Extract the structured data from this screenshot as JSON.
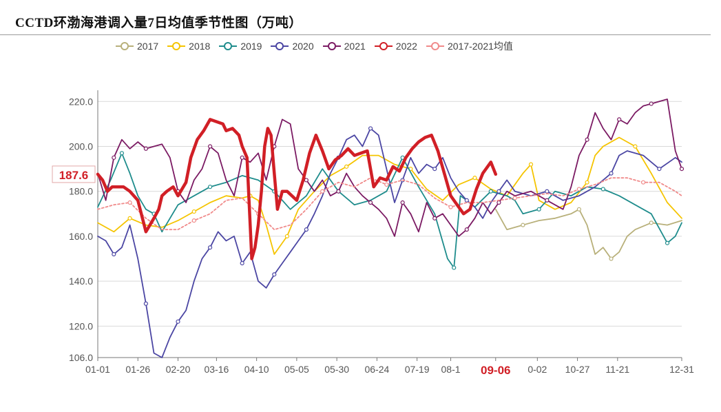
{
  "chart_data": {
    "type": "line",
    "title": "CCTD环渤海港调入量7日均值季节性图（万吨）",
    "xlabel": "",
    "ylabel": "",
    "ylim": [
      106,
      225
    ],
    "y_ticks": [
      "220.0",
      "200.0",
      "180.0",
      "160.0",
      "140.0",
      "120.0",
      "106.0"
    ],
    "y_tick_values": [
      220,
      200,
      180,
      160,
      140,
      120,
      106
    ],
    "x_ticks": [
      "01-01",
      "01-26",
      "02-20",
      "03-16",
      "04-10",
      "05-05",
      "05-30",
      "06-24",
      "07-19",
      "08-1",
      "09-06",
      "0-02",
      "10-27",
      "11-21",
      "12-31"
    ],
    "x_tick_days": [
      0,
      25,
      50,
      74,
      99,
      124,
      149,
      174,
      199,
      220,
      248,
      274,
      299,
      324,
      364
    ],
    "highlight_x": "09-06",
    "highlight_y": "187.6",
    "grid": true,
    "legend_position": "top",
    "colors": {
      "2017": "#b8b07a",
      "2018": "#f5c400",
      "2019": "#1e8c8c",
      "2020": "#4b46a3",
      "2021": "#7b1a63",
      "2022": "#d11f26",
      "2017-2021均值": "#f08a8a"
    },
    "series": [
      {
        "name": "2017",
        "x": [
          248,
          255,
          265,
          275,
          285,
          295,
          300,
          305,
          310,
          315,
          320,
          325,
          330,
          335,
          345,
          355,
          364
        ],
        "values": [
          172,
          163,
          165,
          167,
          168,
          170,
          172,
          165,
          152,
          155,
          150,
          153,
          160,
          163,
          166,
          165,
          167
        ]
      },
      {
        "name": "2018",
        "x": [
          0,
          10,
          20,
          30,
          40,
          50,
          60,
          70,
          80,
          90,
          95,
          100,
          105,
          110,
          118,
          125,
          135,
          145,
          155,
          165,
          175,
          185,
          195,
          205,
          215,
          225,
          235,
          245,
          255,
          265,
          270,
          275,
          285,
          295,
          305,
          310,
          315,
          325,
          335,
          345,
          355,
          364
        ],
        "values": [
          166,
          162,
          168,
          165,
          164,
          167,
          171,
          175,
          178,
          177,
          178,
          176,
          165,
          152,
          160,
          172,
          180,
          187,
          191,
          196,
          196,
          192,
          190,
          181,
          176,
          183,
          186,
          181,
          178,
          188,
          192,
          176,
          172,
          175,
          184,
          196,
          200,
          204,
          200,
          188,
          175,
          168
        ]
      },
      {
        "name": "2019",
        "x": [
          0,
          8,
          15,
          20,
          25,
          30,
          35,
          40,
          50,
          60,
          70,
          80,
          90,
          100,
          110,
          120,
          130,
          140,
          150,
          160,
          170,
          180,
          190,
          200,
          210,
          218,
          222,
          226,
          230,
          235,
          245,
          255,
          260,
          265,
          275,
          285,
          295,
          305,
          315,
          325,
          335,
          345,
          355,
          360,
          364
        ],
        "values": [
          173,
          185,
          197,
          188,
          178,
          172,
          170,
          162,
          174,
          178,
          182,
          184,
          187,
          185,
          180,
          172,
          178,
          190,
          180,
          174,
          176,
          180,
          195,
          182,
          170,
          150,
          146,
          178,
          176,
          173,
          180,
          178,
          176,
          170,
          172,
          180,
          178,
          182,
          181,
          178,
          174,
          170,
          157,
          160,
          166
        ]
      },
      {
        "name": "2020",
        "x": [
          0,
          5,
          10,
          15,
          20,
          25,
          30,
          35,
          40,
          45,
          50,
          55,
          60,
          65,
          70,
          75,
          80,
          85,
          90,
          95,
          100,
          105,
          110,
          115,
          120,
          125,
          130,
          135,
          140,
          145,
          150,
          155,
          160,
          165,
          170,
          175,
          180,
          185,
          190,
          195,
          200,
          205,
          210,
          215,
          220,
          225,
          230,
          235,
          240,
          245,
          250,
          255,
          260,
          270,
          280,
          290,
          300,
          310,
          320,
          325,
          330,
          340,
          350,
          360,
          364
        ],
        "values": [
          160,
          158,
          152,
          155,
          165,
          150,
          130,
          108,
          106,
          115,
          122,
          127,
          140,
          150,
          155,
          162,
          158,
          160,
          148,
          153,
          140,
          137,
          143,
          148,
          153,
          158,
          163,
          170,
          178,
          188,
          195,
          203,
          205,
          200,
          208,
          205,
          190,
          175,
          185,
          195,
          188,
          192,
          190,
          195,
          186,
          180,
          176,
          173,
          168,
          175,
          180,
          185,
          180,
          178,
          180,
          176,
          178,
          182,
          188,
          196,
          198,
          196,
          190,
          195,
          193
        ]
      },
      {
        "name": "2021",
        "x": [
          0,
          5,
          10,
          15,
          20,
          25,
          30,
          35,
          40,
          45,
          50,
          55,
          60,
          65,
          70,
          75,
          80,
          85,
          90,
          95,
          100,
          105,
          110,
          115,
          120,
          125,
          130,
          135,
          140,
          145,
          150,
          155,
          160,
          165,
          170,
          175,
          180,
          185,
          190,
          195,
          200,
          205,
          210,
          215,
          220,
          225,
          230,
          235,
          240,
          245,
          250,
          255,
          260,
          270,
          280,
          290,
          295,
          300,
          305,
          310,
          315,
          320,
          325,
          330,
          335,
          340,
          345,
          350,
          355,
          360,
          364
        ],
        "values": [
          188,
          176,
          195,
          203,
          199,
          202,
          199,
          200,
          201,
          195,
          180,
          175,
          185,
          190,
          200,
          197,
          185,
          178,
          195,
          193,
          197,
          185,
          200,
          212,
          210,
          190,
          185,
          180,
          185,
          178,
          180,
          188,
          182,
          178,
          175,
          172,
          168,
          160,
          175,
          170,
          162,
          175,
          168,
          170,
          165,
          160,
          163,
          168,
          175,
          170,
          175,
          180,
          178,
          180,
          176,
          172,
          182,
          196,
          203,
          215,
          208,
          203,
          212,
          210,
          215,
          218,
          219,
          220,
          221,
          198,
          190
        ]
      },
      {
        "name": "2017-2021均值",
        "x": [
          0,
          10,
          20,
          30,
          40,
          50,
          60,
          70,
          80,
          90,
          100,
          110,
          120,
          130,
          140,
          150,
          160,
          170,
          180,
          190,
          200,
          210,
          220,
          230,
          240,
          250,
          260,
          270,
          280,
          290,
          300,
          310,
          320,
          330,
          340,
          350,
          360,
          364
        ],
        "values": [
          172,
          174,
          175,
          168,
          163,
          163,
          167,
          170,
          176,
          177,
          170,
          163,
          165,
          172,
          180,
          184,
          182,
          186,
          183,
          185,
          183,
          177,
          173,
          175,
          175,
          176,
          177,
          178,
          179,
          178,
          181,
          183,
          186,
          186,
          184,
          184,
          180,
          178
        ]
      },
      {
        "name": "2022",
        "x": [
          0,
          3,
          6,
          9,
          12,
          16,
          20,
          25,
          30,
          35,
          38,
          40,
          43,
          47,
          50,
          55,
          58,
          62,
          66,
          70,
          74,
          78,
          80,
          84,
          88,
          90,
          93,
          96,
          98,
          100,
          102,
          104,
          106,
          108,
          110,
          112,
          115,
          118,
          121,
          124,
          128,
          132,
          136,
          140,
          144,
          148,
          152,
          156,
          160,
          164,
          168,
          172,
          176,
          180,
          184,
          188,
          192,
          196,
          200,
          204,
          208,
          212,
          216,
          220,
          224,
          228,
          232,
          236,
          240,
          245,
          248
        ],
        "values": [
          187.6,
          185,
          180,
          182,
          182,
          182,
          180,
          176,
          162,
          168,
          172,
          178,
          180,
          182,
          178,
          184,
          195,
          203,
          207,
          212,
          211,
          210,
          207,
          208,
          205,
          200,
          195,
          150,
          155,
          165,
          180,
          200,
          208,
          205,
          188,
          172,
          180,
          180,
          178,
          176,
          185,
          197,
          205,
          198,
          190,
          194,
          196,
          199,
          196,
          197,
          198,
          182,
          186,
          185,
          191,
          189,
          195,
          199,
          202,
          204,
          205,
          198,
          188,
          178,
          174,
          170,
          172,
          181,
          188,
          193,
          187.6
        ]
      }
    ]
  }
}
